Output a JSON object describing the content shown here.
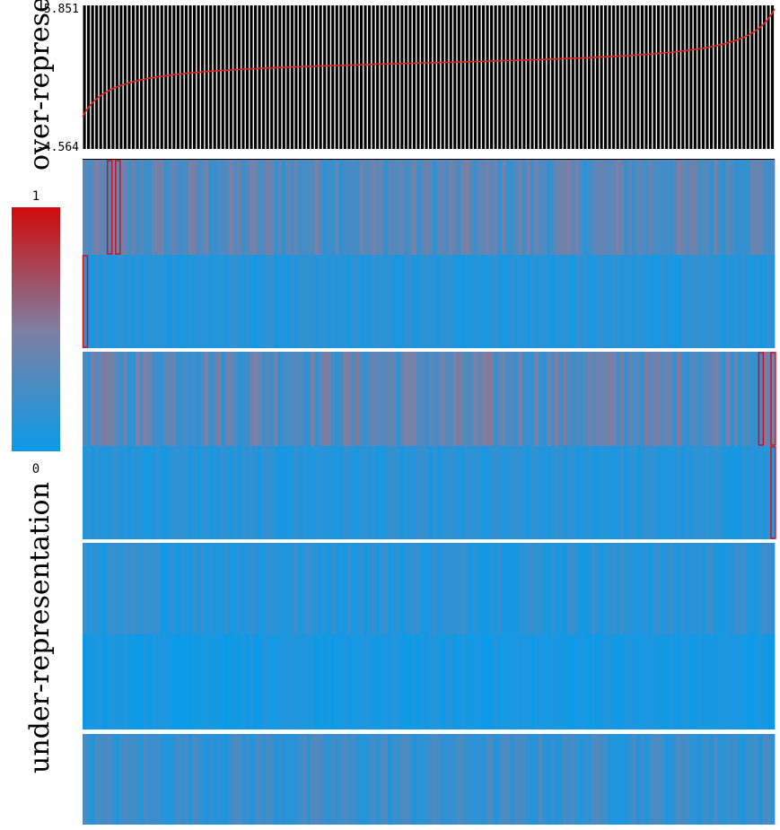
{
  "chart_data": {
    "type": "heatmap",
    "top_panel": {
      "type": "bar",
      "y_max_label": "5.851",
      "y_min_label": "-4.564",
      "ylim": [
        -4.564,
        5.851
      ],
      "line_color": "#e8231f",
      "bar_color": "#000000"
    },
    "colorbar": {
      "max_label": "1",
      "min_label": "0",
      "low_color": "#0b9ae8",
      "mid_color": "#7f7fa3",
      "high_color": "#d00a0a"
    },
    "y_axis_labels": {
      "top": "over-represe",
      "bottom": "under-representation"
    },
    "heatmap": {
      "row_groups": 4,
      "rows_per_group": [
        2,
        2,
        2,
        1
      ],
      "columns": 170,
      "highlighted_cells": [
        {
          "row": 0,
          "cols": [
            6,
            8
          ]
        },
        {
          "row": 1,
          "cols": [
            0
          ]
        },
        {
          "row": 2,
          "cols": [
            166,
            169
          ]
        },
        {
          "row": 3,
          "cols": [
            169
          ]
        }
      ],
      "separator_color": "#ffffff",
      "highlight_color": "#d0101c"
    }
  }
}
